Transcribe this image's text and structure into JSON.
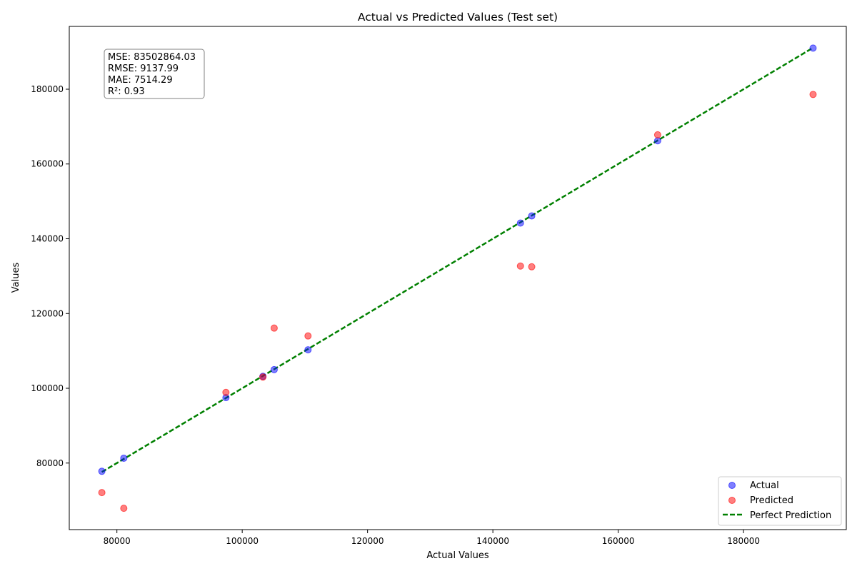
{
  "chart_data": {
    "type": "scatter",
    "title": "Actual vs Predicted Values (Test set)",
    "xlabel": "Actual Values",
    "ylabel": "Values",
    "xlim": [
      72400,
      196400
    ],
    "ylim": [
      62200,
      196800
    ],
    "xticks": [
      80000,
      100000,
      120000,
      140000,
      160000,
      180000
    ],
    "yticks": [
      80000,
      100000,
      120000,
      140000,
      160000,
      180000
    ],
    "grid": false,
    "legend_position": "bottom-right",
    "series": [
      {
        "name": "Actual",
        "color": "#0000ff",
        "points": [
          [
            77600,
            77800
          ],
          [
            81100,
            81300
          ],
          [
            97400,
            97500
          ],
          [
            103300,
            103200
          ],
          [
            105100,
            105000
          ],
          [
            110500,
            110300
          ],
          [
            144400,
            144200
          ],
          [
            146200,
            146100
          ],
          [
            166300,
            166200
          ],
          [
            191100,
            191000
          ]
        ]
      },
      {
        "name": "Predicted",
        "color": "#ff0000",
        "points": [
          [
            77600,
            72100
          ],
          [
            81100,
            67900
          ],
          [
            97400,
            98900
          ],
          [
            103300,
            103000
          ],
          [
            105100,
            116100
          ],
          [
            110500,
            114000
          ],
          [
            144400,
            132700
          ],
          [
            146200,
            132500
          ],
          [
            166300,
            167800
          ],
          [
            191100,
            178600
          ]
        ]
      },
      {
        "name": "Perfect Prediction",
        "color": "#008000",
        "style": "dashed",
        "points": [
          [
            77600,
            77600
          ],
          [
            191100,
            191100
          ]
        ]
      }
    ],
    "annotation": [
      "MSE: 83502864.03",
      "RMSE: 9137.99",
      "MAE: 7514.29",
      "R²: 0.93"
    ]
  }
}
